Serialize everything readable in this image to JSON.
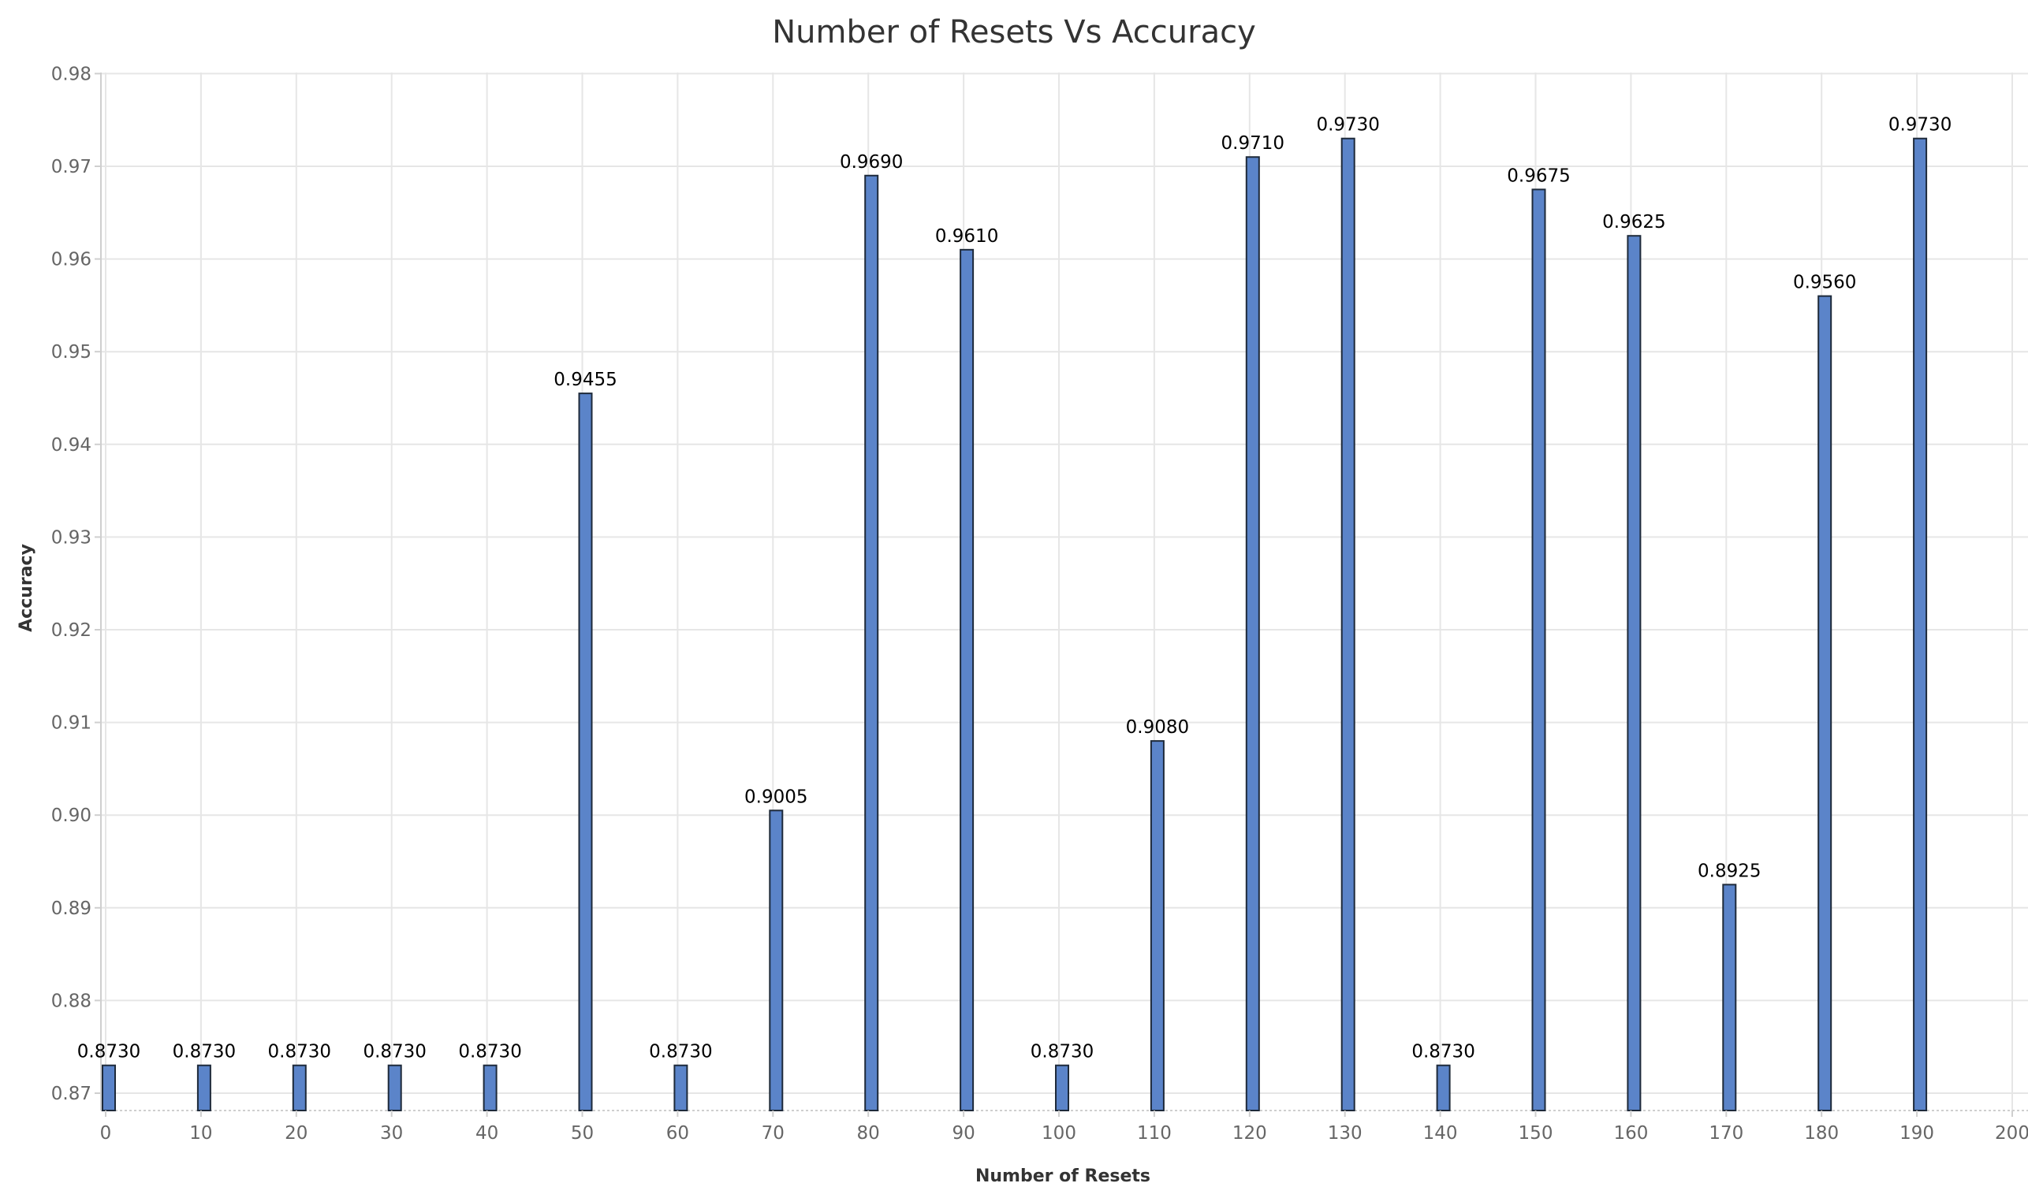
{
  "chart_data": {
    "type": "bar",
    "title": "Number of Resets Vs Accuracy",
    "xlabel": "Number of Resets",
    "ylabel": "Accuracy",
    "x": [
      0,
      10,
      20,
      30,
      40,
      50,
      60,
      70,
      80,
      90,
      100,
      110,
      120,
      130,
      140,
      150,
      160,
      170,
      180,
      190
    ],
    "values": [
      0.873,
      0.873,
      0.873,
      0.873,
      0.873,
      0.9455,
      0.873,
      0.9005,
      0.969,
      0.961,
      0.873,
      0.908,
      0.971,
      0.973,
      0.873,
      0.9675,
      0.9625,
      0.8925,
      0.956,
      0.973
    ],
    "labels": [
      "0.8730",
      "0.8730",
      "0.8730",
      "0.8730",
      "0.8730",
      "0.9455",
      "0.8730",
      "0.9005",
      "0.9690",
      "0.9610",
      "0.8730",
      "0.9080",
      "0.9710",
      "0.9730",
      "0.8730",
      "0.9675",
      "0.9625",
      "0.8925",
      "0.9560",
      "0.9730"
    ],
    "xticks": [
      "0",
      "10",
      "20",
      "30",
      "40",
      "50",
      "60",
      "70",
      "80",
      "90",
      "100",
      "110",
      "120",
      "130",
      "140",
      "150",
      "160",
      "170",
      "180",
      "190",
      "200"
    ],
    "yticks": [
      "0.87",
      "0.88",
      "0.89",
      "0.90",
      "0.91",
      "0.92",
      "0.93",
      "0.94",
      "0.95",
      "0.96",
      "0.97",
      "0.98"
    ],
    "xlim": [
      0,
      200
    ],
    "ylim": [
      0.868,
      0.98
    ],
    "bar_color": "#5b84c9",
    "grid": true
  }
}
